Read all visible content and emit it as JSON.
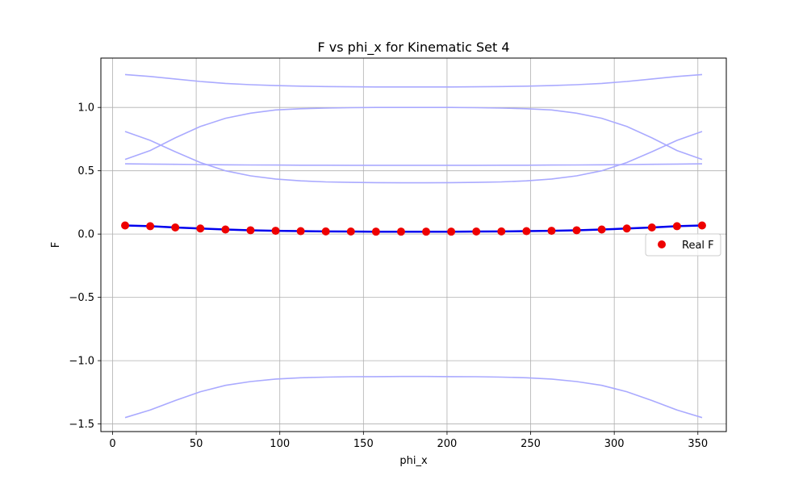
{
  "chart_data": {
    "type": "line",
    "title": "F vs phi_x for Kinematic Set 4",
    "xlabel": "phi_x",
    "ylabel": "F",
    "xlim": [
      -7,
      367
    ],
    "ylim": [
      -1.56,
      1.39
    ],
    "xticks": [
      0,
      50,
      100,
      150,
      200,
      250,
      300,
      350
    ],
    "yticks": [
      -1.5,
      -1.0,
      -0.5,
      0.0,
      0.5,
      1.0
    ],
    "ytick_labels": [
      "−1.5",
      "−1.0",
      "−0.5",
      "0.0",
      "0.5",
      "1.0"
    ],
    "grid": true,
    "legend": {
      "placement": "right",
      "entries": [
        "Real F"
      ]
    },
    "x": [
      7.5,
      22.5,
      37.5,
      52.5,
      67.5,
      82.5,
      97.5,
      112.5,
      127.5,
      142.5,
      157.5,
      172.5,
      187.5,
      202.5,
      217.5,
      232.5,
      247.5,
      262.5,
      277.5,
      292.5,
      307.5,
      322.5,
      337.5,
      352.5
    ],
    "faint_series": [
      {
        "values": [
          1.26,
          1.245,
          1.225,
          1.205,
          1.19,
          1.18,
          1.173,
          1.168,
          1.165,
          1.163,
          1.162,
          1.162,
          1.162,
          1.162,
          1.163,
          1.165,
          1.168,
          1.173,
          1.18,
          1.19,
          1.205,
          1.225,
          1.245,
          1.26
        ]
      },
      {
        "values": [
          0.81,
          0.74,
          0.65,
          0.565,
          0.5,
          0.46,
          0.435,
          0.42,
          0.412,
          0.408,
          0.406,
          0.405,
          0.405,
          0.406,
          0.408,
          0.412,
          0.42,
          0.435,
          0.46,
          0.5,
          0.565,
          0.65,
          0.74,
          0.81
        ]
      },
      {
        "values": [
          0.59,
          0.66,
          0.76,
          0.85,
          0.915,
          0.955,
          0.98,
          0.99,
          0.995,
          0.998,
          1.0,
          1.0,
          1.0,
          1.0,
          0.998,
          0.995,
          0.99,
          0.98,
          0.955,
          0.915,
          0.85,
          0.76,
          0.66,
          0.59
        ]
      },
      {
        "values": [
          0.555,
          0.553,
          0.551,
          0.549,
          0.547,
          0.546,
          0.545,
          0.544,
          0.544,
          0.543,
          0.543,
          0.543,
          0.543,
          0.543,
          0.543,
          0.544,
          0.544,
          0.545,
          0.546,
          0.547,
          0.549,
          0.551,
          0.553,
          0.555
        ]
      },
      {
        "values": [
          -1.45,
          -1.39,
          -1.315,
          -1.245,
          -1.195,
          -1.165,
          -1.145,
          -1.135,
          -1.13,
          -1.127,
          -1.126,
          -1.125,
          -1.125,
          -1.126,
          -1.127,
          -1.13,
          -1.135,
          -1.145,
          -1.165,
          -1.195,
          -1.245,
          -1.315,
          -1.39,
          -1.45
        ]
      }
    ],
    "main_series": {
      "values": [
        0.068,
        0.062,
        0.052,
        0.044,
        0.036,
        0.03,
        0.026,
        0.023,
        0.021,
        0.02,
        0.019,
        0.019,
        0.019,
        0.019,
        0.02,
        0.021,
        0.023,
        0.026,
        0.03,
        0.036,
        0.044,
        0.052,
        0.062,
        0.068
      ]
    },
    "real_f": {
      "name": "Real F",
      "values": [
        0.068,
        0.062,
        0.052,
        0.044,
        0.036,
        0.03,
        0.026,
        0.023,
        0.021,
        0.02,
        0.019,
        0.019,
        0.019,
        0.019,
        0.02,
        0.021,
        0.023,
        0.026,
        0.03,
        0.036,
        0.044,
        0.052,
        0.062,
        0.068
      ]
    },
    "colors": {
      "faint": "#aaaaff",
      "main": "#0000ee",
      "marker": "#ee0000",
      "grid": "#b0b0b0"
    }
  }
}
